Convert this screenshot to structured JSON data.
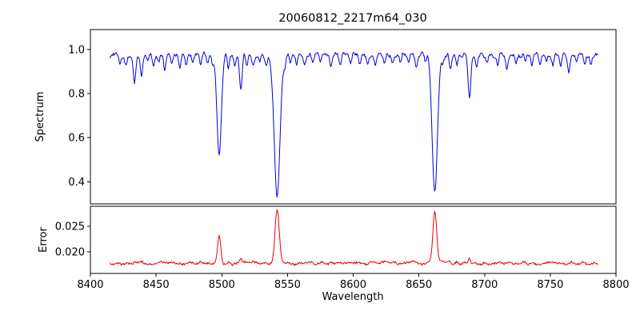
{
  "figure": {
    "background": "#ffffff"
  },
  "chart_data": {
    "type": "line",
    "title": "20060812_2217m64_030",
    "xlabel": "Wavelength",
    "xlim": [
      8400,
      8800
    ],
    "xticks": [
      8400,
      8450,
      8500,
      8550,
      8600,
      8650,
      8700,
      8750,
      8800
    ],
    "x_start": 8415,
    "x_end": 8786,
    "x_step": 0.5,
    "grid": false,
    "legend": "none",
    "subplots": [
      {
        "name": "spectrum",
        "ylabel": "Spectrum",
        "line_color": "#0000dd",
        "ylim": [
          0.3,
          1.09
        ],
        "yticks": [
          0.4,
          0.6,
          0.8,
          1.0
        ],
        "ytick_labels": [
          "0.4",
          "0.6",
          "0.8",
          "1.0"
        ],
        "continuum": 0.975,
        "smooth_noise_amp": 0.012,
        "white_noise_amp": 0.006,
        "main_absorption_lines": [
          {
            "center": 8498.0,
            "depth": 0.45,
            "width": 1.7
          },
          {
            "center": 8542.1,
            "depth": 0.64,
            "width": 2.2
          },
          {
            "center": 8662.1,
            "depth": 0.63,
            "width": 2.0
          }
        ],
        "secondary_absorption_lines": [
          [
            8422.5,
            0.05,
            0.9
          ],
          [
            8427,
            0.04,
            0.8
          ],
          [
            8433.5,
            0.13,
            1.0
          ],
          [
            8439,
            0.09,
            0.9
          ],
          [
            8444,
            0.03,
            0.8
          ],
          [
            8448,
            0.05,
            0.8
          ],
          [
            8452,
            0.03,
            0.7
          ],
          [
            8456.5,
            0.06,
            0.8
          ],
          [
            8462,
            0.05,
            0.9
          ],
          [
            8468,
            0.07,
            0.9
          ],
          [
            8473,
            0.04,
            0.8
          ],
          [
            8478,
            0.03,
            0.7
          ],
          [
            8484,
            0.05,
            0.8
          ],
          [
            8489,
            0.04,
            0.8
          ],
          [
            8493,
            0.03,
            0.7
          ],
          [
            8505,
            0.06,
            0.8
          ],
          [
            8510,
            0.04,
            0.7
          ],
          [
            8514.5,
            0.17,
            1.0
          ],
          [
            8519,
            0.06,
            0.8
          ],
          [
            8524,
            0.04,
            0.8
          ],
          [
            8529,
            0.03,
            0.7
          ],
          [
            8534,
            0.05,
            0.8
          ],
          [
            8548,
            0.04,
            0.8
          ],
          [
            8552,
            0.03,
            0.7
          ],
          [
            8557,
            0.05,
            0.8
          ],
          [
            8563,
            0.04,
            0.8
          ],
          [
            8569,
            0.03,
            0.7
          ],
          [
            8575,
            0.04,
            0.8
          ],
          [
            8583,
            0.06,
            0.9
          ],
          [
            8590,
            0.04,
            0.8
          ],
          [
            8598,
            0.05,
            0.9
          ],
          [
            8605,
            0.03,
            0.7
          ],
          [
            8611,
            0.04,
            0.8
          ],
          [
            8617,
            0.05,
            0.8
          ],
          [
            8624,
            0.04,
            0.8
          ],
          [
            8630,
            0.03,
            0.7
          ],
          [
            8636,
            0.04,
            0.8
          ],
          [
            8642,
            0.03,
            0.7
          ],
          [
            8648,
            0.06,
            0.9
          ],
          [
            8655,
            0.03,
            0.7
          ],
          [
            8668,
            0.04,
            0.8
          ],
          [
            8674,
            0.07,
            0.9
          ],
          [
            8679,
            0.05,
            0.8
          ],
          [
            8688.5,
            0.19,
            1.0
          ],
          [
            8694,
            0.05,
            0.8
          ],
          [
            8702,
            0.04,
            0.8
          ],
          [
            8710,
            0.04,
            0.8
          ],
          [
            8717,
            0.06,
            0.9
          ],
          [
            8724,
            0.04,
            0.8
          ],
          [
            8731,
            0.03,
            0.7
          ],
          [
            8736,
            0.05,
            0.8
          ],
          [
            8742,
            0.04,
            0.8
          ],
          [
            8747,
            0.03,
            0.7
          ],
          [
            8752,
            0.05,
            0.8
          ],
          [
            8758,
            0.04,
            0.8
          ],
          [
            8764,
            0.07,
            0.9
          ],
          [
            8770,
            0.04,
            0.8
          ],
          [
            8776,
            0.05,
            0.8
          ],
          [
            8781,
            0.04,
            0.7
          ]
        ]
      },
      {
        "name": "error",
        "ylabel": "Error",
        "line_color": "#ee0000",
        "ylim": [
          0.0158,
          0.0289
        ],
        "yticks": [
          0.02,
          0.025
        ],
        "ytick_labels": [
          "0.020",
          "0.025"
        ],
        "baseline": 0.0178,
        "smooth_noise_amp": 0.0003,
        "white_noise_amp": 0.0002,
        "peak_factor": 0.0254
      }
    ]
  }
}
